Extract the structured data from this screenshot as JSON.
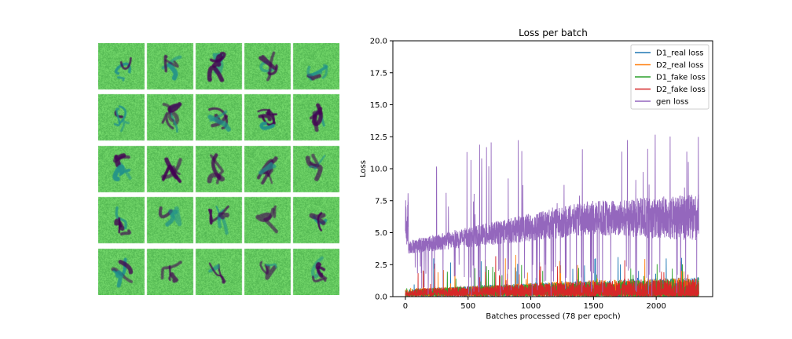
{
  "samples": {
    "rows": 5,
    "cols": 5,
    "background_color": "#5dc962",
    "ink_color": "#440154",
    "mid_color": "#21918c"
  },
  "chart_data": {
    "type": "line",
    "title": "Loss per batch",
    "xlabel": "Batches processed (78 per epoch)",
    "ylabel": "Loss",
    "xlim": [
      -100,
      2450
    ],
    "ylim": [
      0,
      20
    ],
    "x_ticks": [
      0,
      500,
      1000,
      1500,
      2000
    ],
    "x_tick_labels": [
      "0",
      "500",
      "1000",
      "1500",
      "2000"
    ],
    "y_ticks": [
      0,
      2.5,
      5,
      7.5,
      10,
      12.5,
      15,
      17.5,
      20
    ],
    "y_tick_labels": [
      "0.0",
      "2.5",
      "5.0",
      "7.5",
      "10.0",
      "12.5",
      "15.0",
      "17.5",
      "20.0"
    ],
    "grid": false,
    "legend_position": "top-right",
    "num_batches": 2340,
    "series": [
      {
        "name": "D1_real loss",
        "color": "#1f77b4",
        "mean_start": 0.35,
        "mean_end": 0.6,
        "spread": 1.2,
        "spike_max": 3.3
      },
      {
        "name": "D2_real loss",
        "color": "#ff7f0e",
        "mean_start": 0.35,
        "mean_end": 0.6,
        "spread": 1.2,
        "spike_max": 3.3
      },
      {
        "name": "D1_fake loss",
        "color": "#2ca02c",
        "mean_start": 0.35,
        "mean_end": 0.55,
        "spread": 1.1,
        "spike_max": 2.6
      },
      {
        "name": "D2_fake loss",
        "color": "#d62728",
        "mean_start": 0.35,
        "mean_end": 0.55,
        "spread": 1.1,
        "spike_max": 3.2
      },
      {
        "name": "gen loss",
        "color": "#9467bd",
        "mean_start": 3.8,
        "mean_end": 6.0,
        "spread": 2.6,
        "spike_max": 12.7
      }
    ]
  }
}
